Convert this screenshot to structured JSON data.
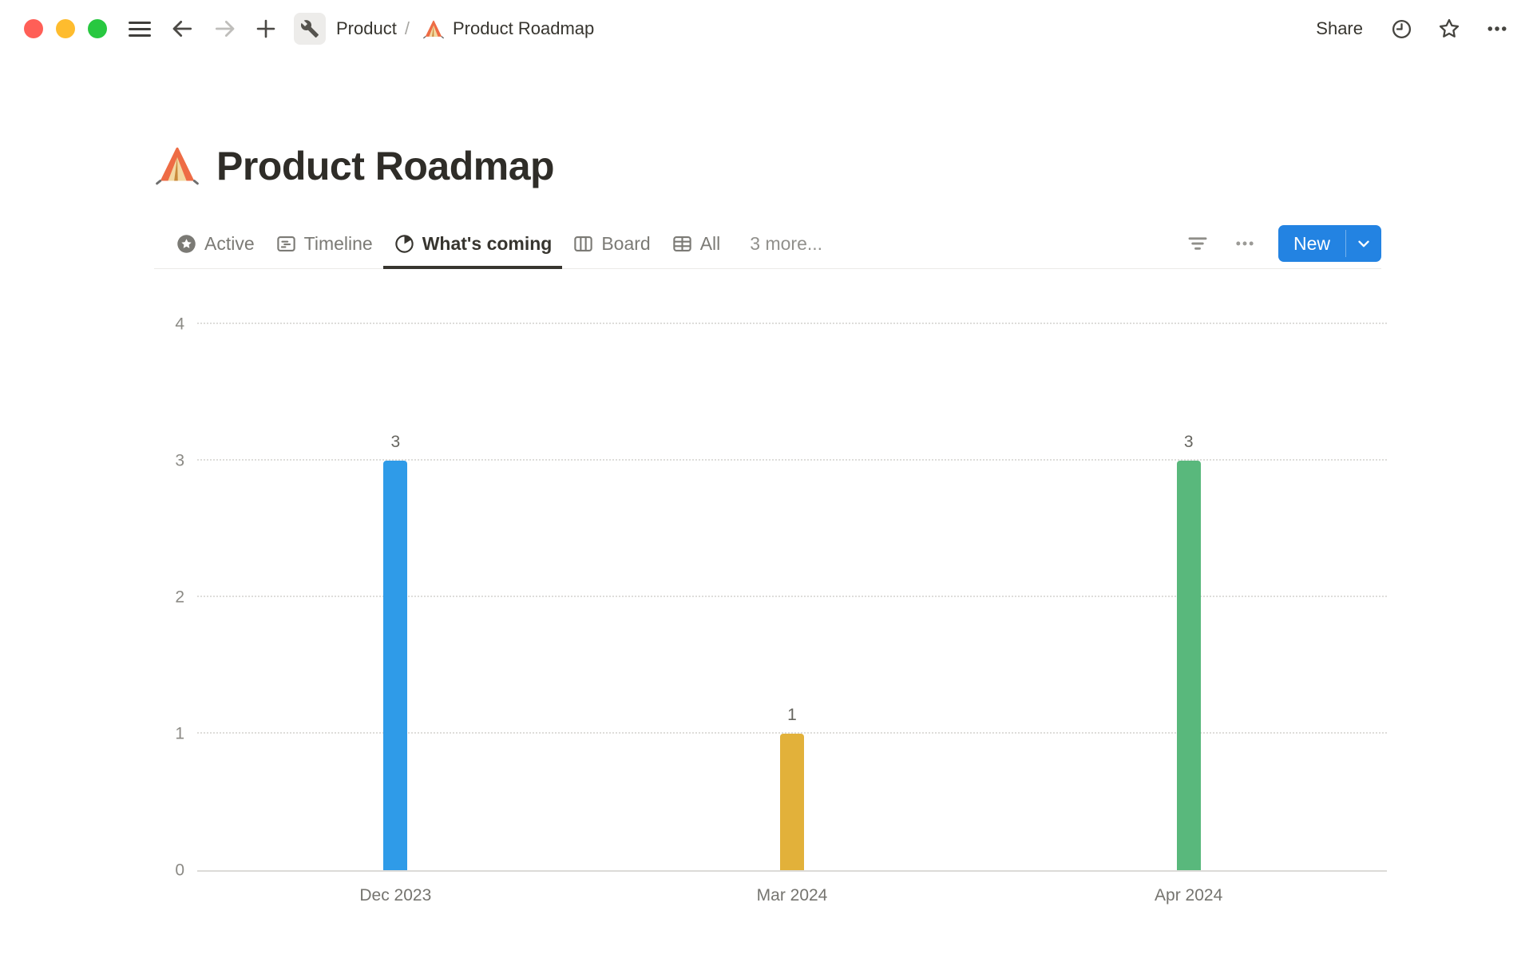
{
  "window": {
    "traffic_light_colors": [
      "#FF5F57",
      "#FEBC2E",
      "#28C840"
    ]
  },
  "topbar": {
    "breadcrumb": {
      "workspace_icon": "wrench",
      "workspace": "Product",
      "separator": "/",
      "page_emoji": "⛺",
      "page_title": "Product Roadmap"
    },
    "share_label": "Share"
  },
  "page": {
    "emoji": "⛺",
    "title": "Product Roadmap"
  },
  "view_tabs": {
    "tabs": [
      {
        "label": "Active",
        "icon": "star-badge-icon",
        "active": false
      },
      {
        "label": "Timeline",
        "icon": "timeline-icon",
        "active": false
      },
      {
        "label": "What's coming",
        "icon": "pie-chart-icon",
        "active": true
      },
      {
        "label": "Board",
        "icon": "board-icon",
        "active": false
      },
      {
        "label": "All",
        "icon": "table-icon",
        "active": false
      }
    ],
    "more_label": "3 more...",
    "new_button": {
      "label": "New",
      "color": "#2383E2"
    }
  },
  "chart_data": {
    "type": "bar",
    "title": "",
    "xlabel": "",
    "ylabel": "",
    "categories": [
      "Dec 2023",
      "Mar 2024",
      "Apr 2024"
    ],
    "values": [
      3,
      1,
      3
    ],
    "bar_colors": [
      "#2F9BE8",
      "#E2B13A",
      "#59B87C"
    ],
    "ylim": [
      0,
      4
    ],
    "yticks": [
      0,
      1,
      2,
      3,
      4
    ],
    "grid": "horizontal-dotted",
    "value_labels": true,
    "legend": "none"
  }
}
